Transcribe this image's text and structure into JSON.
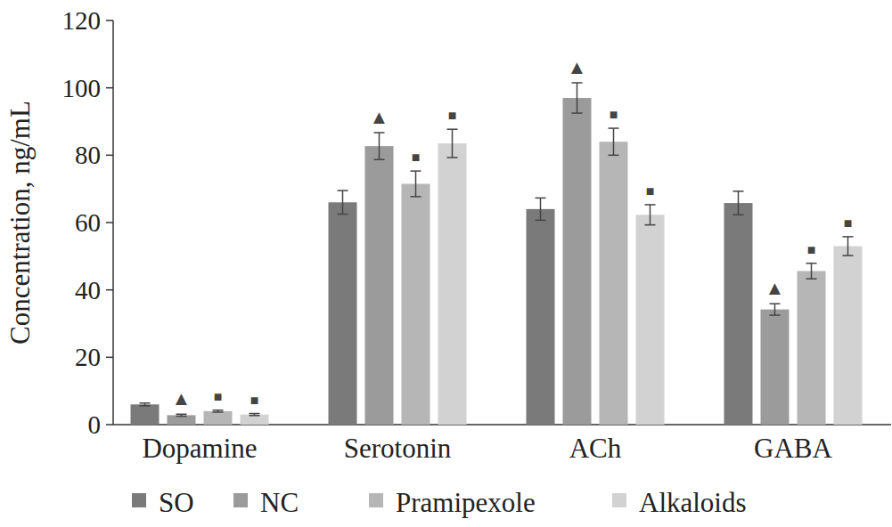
{
  "chart_data": {
    "type": "bar",
    "y_label": "Concentration, ng/mL",
    "categories": [
      "Dopamine",
      "Serotonin",
      "ACh",
      "GABA"
    ],
    "ylim": [
      0,
      120
    ],
    "yticks": [
      0,
      20,
      40,
      60,
      80,
      100,
      120
    ],
    "legend": "bottom",
    "series": [
      {
        "name": "SO",
        "color": "#7a7a7a",
        "values": [
          6.0,
          66.0,
          64.0,
          65.8
        ],
        "errors": [
          0.4,
          3.5,
          3.3,
          3.5
        ],
        "significance": [
          null,
          null,
          null,
          null
        ]
      },
      {
        "name": "NC",
        "color": "#9b9b9b",
        "values": [
          2.8,
          82.7,
          97.0,
          34.2
        ],
        "errors": [
          0.3,
          4.0,
          4.5,
          1.7
        ],
        "significance": [
          "▲",
          "▲",
          "▲",
          "▲"
        ]
      },
      {
        "name": "Pramipexole",
        "color": "#b6b6b6",
        "values": [
          4.0,
          71.5,
          84.0,
          45.6
        ],
        "errors": [
          0.3,
          3.8,
          4.0,
          2.3
        ],
        "significance": [
          "■",
          "■",
          "■",
          "■"
        ]
      },
      {
        "name": "Alkaloids",
        "color": "#d2d2d2",
        "values": [
          3.0,
          83.5,
          62.3,
          53.0
        ],
        "errors": [
          0.3,
          4.2,
          3.0,
          2.8
        ],
        "significance": [
          "■",
          "■",
          "■",
          "■"
        ]
      }
    ]
  }
}
